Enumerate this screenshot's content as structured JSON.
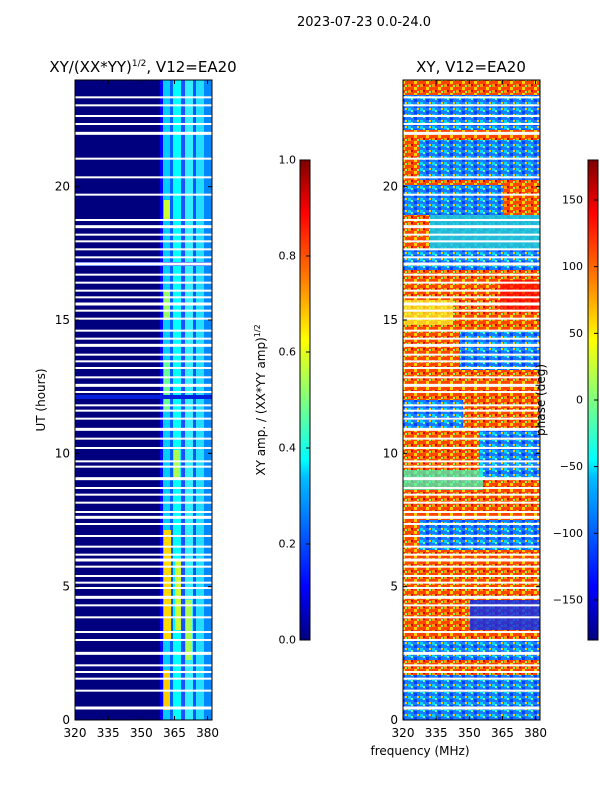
{
  "suptitle": "2023-07-23 0.0-24.0",
  "shared_xlabel": "frequency (MHz)",
  "colors": {
    "jet": [
      "#00007f",
      "#0000ff",
      "#007fff",
      "#00ffff",
      "#7fff7f",
      "#ffff00",
      "#ff7f00",
      "#ff0000",
      "#7f0000"
    ],
    "gap": "#ffffff"
  },
  "chart_data": [
    {
      "type": "heatmap",
      "title": "XY/(XX*YY)",
      "title_sup": "1/2",
      "title_suffix": ", V12=EA20",
      "xlabel": "",
      "ylabel": "UT (hours)",
      "xlim": [
        320,
        382
      ],
      "ylim": [
        0,
        24
      ],
      "xticks": [
        320,
        335,
        350,
        365,
        380
      ],
      "yticks": [
        0,
        5,
        10,
        15,
        20
      ],
      "grid": false,
      "values_description_bands": [
        {
          "freq_range": [
            320,
            360
          ],
          "value": 0.0
        },
        {
          "freq_range": [
            362,
            383
          ],
          "value_range": [
            0.2,
            0.6
          ]
        }
      ],
      "colorbar": {
        "label": "XY amp. / (XX*YY amp)",
        "label_sup": "1/2",
        "range": [
          0.0,
          1.0
        ],
        "ticks": [
          "0.0",
          "0.2",
          "0.4",
          "0.6",
          "0.8",
          "1.0"
        ]
      }
    },
    {
      "type": "heatmap",
      "title": "XY, V12=EA20",
      "xlabel": "frequency (MHz)",
      "ylabel": "",
      "xlim": [
        320,
        382
      ],
      "ylim": [
        0,
        24
      ],
      "xticks": [
        320,
        335,
        350,
        365,
        380
      ],
      "yticks": [
        0,
        5,
        10,
        15,
        20
      ],
      "grid": false,
      "value_range": [
        -180,
        180
      ],
      "colorbar": {
        "label": "phase (deg)",
        "range": [
          -180,
          180
        ],
        "ticks": [
          "−150",
          "−100",
          "−50",
          "0",
          "50",
          "100",
          "150"
        ]
      }
    }
  ],
  "gap_hours": [
    0.45,
    1.1,
    1.55,
    1.8,
    2.05,
    2.5,
    3.0,
    3.3,
    3.85,
    4.3,
    4.6,
    4.95,
    5.15,
    5.4,
    5.75,
    6.0,
    6.2,
    6.5,
    6.9,
    7.35,
    7.6,
    7.8,
    8.15,
    8.45,
    8.7,
    9.05,
    9.5,
    9.7,
    10.2,
    10.55,
    10.9,
    11.3,
    11.6,
    11.8,
    12.3,
    12.55,
    12.85,
    13.2,
    13.45,
    13.7,
    14.05,
    14.3,
    14.6,
    15.05,
    15.35,
    15.6,
    15.85,
    16.1,
    16.4,
    16.7,
    17.1,
    17.35,
    17.65,
    17.95,
    18.2,
    18.5,
    18.75,
    19.7,
    20.35,
    21.05,
    22.0,
    22.35,
    22.65,
    23.05,
    23.35
  ]
}
